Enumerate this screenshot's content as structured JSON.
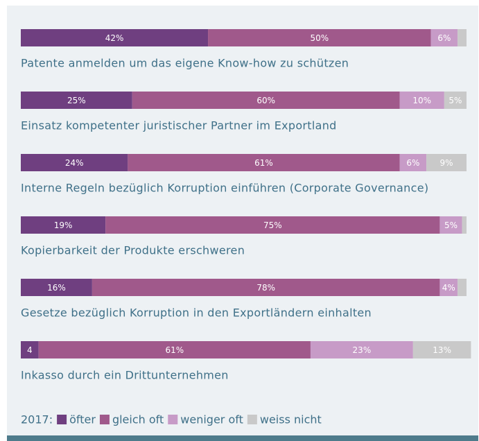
{
  "chart_data": {
    "type": "stacked-bar",
    "categories": [
      "Patente anmelden um das eigene Know-how zu schützen",
      "Einsatz kompetenter juristischer Partner im Exportland",
      "Interne Regeln bezüglich Korruption einführen (Corporate Governance)",
      "Kopierbarkeit der Produkte erschweren",
      "Gesetze bezüglich Korruption in den Exportländern einhalten",
      "Inkasso durch ein Drittunternehmen"
    ],
    "xlim": [
      0,
      100
    ],
    "legend_title": "2017:",
    "series": [
      {
        "name": "öfter",
        "color": "#6f3f80",
        "values": [
          42,
          25,
          24,
          19,
          16,
          4
        ],
        "value_labels": [
          "42%",
          "25%",
          "24%",
          "19%",
          "16%",
          "4"
        ]
      },
      {
        "name": "gleich oft",
        "color": "#a0598b",
        "values": [
          50,
          60,
          61,
          75,
          78,
          61
        ],
        "value_labels": [
          "50%",
          "60%",
          "61%",
          "75%",
          "78%",
          "61%"
        ]
      },
      {
        "name": "weniger oft",
        "color": "#c79bc7",
        "values": [
          6,
          10,
          6,
          5,
          4,
          23
        ],
        "value_labels": [
          "6%",
          "10%",
          "6%",
          "5%",
          "4%",
          "23%"
        ]
      },
      {
        "name": "weiss nicht",
        "color": "#c9c9c9",
        "values": [
          2,
          5,
          9,
          1,
          2,
          13
        ],
        "value_labels": [
          null,
          "5%",
          "9%",
          null,
          null,
          "13%"
        ]
      }
    ]
  }
}
